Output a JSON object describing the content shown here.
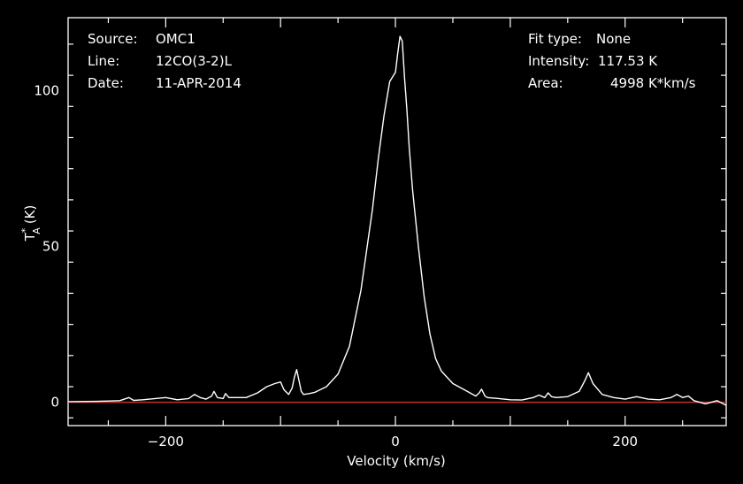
{
  "header": {
    "left": [
      {
        "label": "Source:",
        "value": "OMC1"
      },
      {
        "label": "Line:",
        "value": "12CO(3-2)L"
      },
      {
        "label": "Date:",
        "value": "11-APR-2014"
      }
    ],
    "right": [
      {
        "label": "Fit type:",
        "value": "None"
      },
      {
        "label": "Intensity:",
        "value": "117.53 K"
      },
      {
        "label": "Area:",
        "value": "4998 K*km/s"
      }
    ]
  },
  "colors": {
    "background": "#000000",
    "axes": "#ffffff",
    "spectrum": "#ffffff",
    "baseline": "#c0302a"
  },
  "chart_data": {
    "type": "line",
    "xlabel": "Velocity (km/s)",
    "ylabel": "T*A (K)",
    "xlim": [
      -285,
      288
    ],
    "ylim": [
      -7.5,
      123.5
    ],
    "xticks": [
      -200,
      0,
      200
    ],
    "xtick_labels": [
      "−200",
      "0",
      "200"
    ],
    "yticks": [
      0,
      50,
      100
    ],
    "ytick_labels": [
      "0",
      "50",
      "100"
    ],
    "grid": false,
    "baseline": 0,
    "series": [
      {
        "x": [
          -285,
          -260,
          -240,
          -232,
          -228,
          -220,
          -200,
          -190,
          -180,
          -175,
          -170,
          -165,
          -160,
          -158,
          -155,
          -150,
          -148,
          -145,
          -130,
          -120,
          -112,
          -105,
          -100,
          -97,
          -93,
          -90,
          -88,
          -86,
          -84,
          -82,
          -80,
          -75,
          -70,
          -60,
          -50,
          -40,
          -30,
          -20,
          -15,
          -10,
          -5,
          0,
          2,
          4,
          6,
          8,
          10,
          12,
          15,
          20,
          25,
          30,
          35,
          40,
          45,
          50,
          60,
          70,
          73,
          75,
          78,
          80,
          90,
          100,
          110,
          120,
          125,
          130,
          133,
          136,
          140,
          150,
          160,
          165,
          168,
          172,
          180,
          190,
          200,
          210,
          220,
          230,
          240,
          245,
          250,
          255,
          260,
          270,
          280,
          288
        ],
        "y": [
          0.2,
          0.3,
          0.5,
          1.5,
          0.6,
          0.8,
          1.5,
          0.8,
          1.2,
          2.5,
          1.5,
          1,
          2,
          3.5,
          1.5,
          1.2,
          2.8,
          1.5,
          1.5,
          3,
          5,
          6,
          6.5,
          4,
          2.5,
          4.5,
          8,
          10.5,
          7,
          3.5,
          2.5,
          2.8,
          3.2,
          5,
          9,
          18,
          36,
          62,
          78,
          92,
          103,
          106,
          112,
          117.5,
          116,
          104,
          94,
          82,
          68,
          50,
          34,
          22,
          14,
          10,
          8,
          6,
          4,
          2,
          3,
          4.2,
          2,
          1.5,
          1.2,
          0.8,
          0.7,
          1.5,
          2.3,
          1.5,
          3,
          1.8,
          1.5,
          1.8,
          3.5,
          7,
          9.5,
          6,
          2.5,
          1.5,
          1,
          1.8,
          1,
          0.8,
          1.5,
          2.5,
          1.5,
          2,
          0.5,
          -0.5,
          0.5,
          -1
        ]
      }
    ]
  }
}
